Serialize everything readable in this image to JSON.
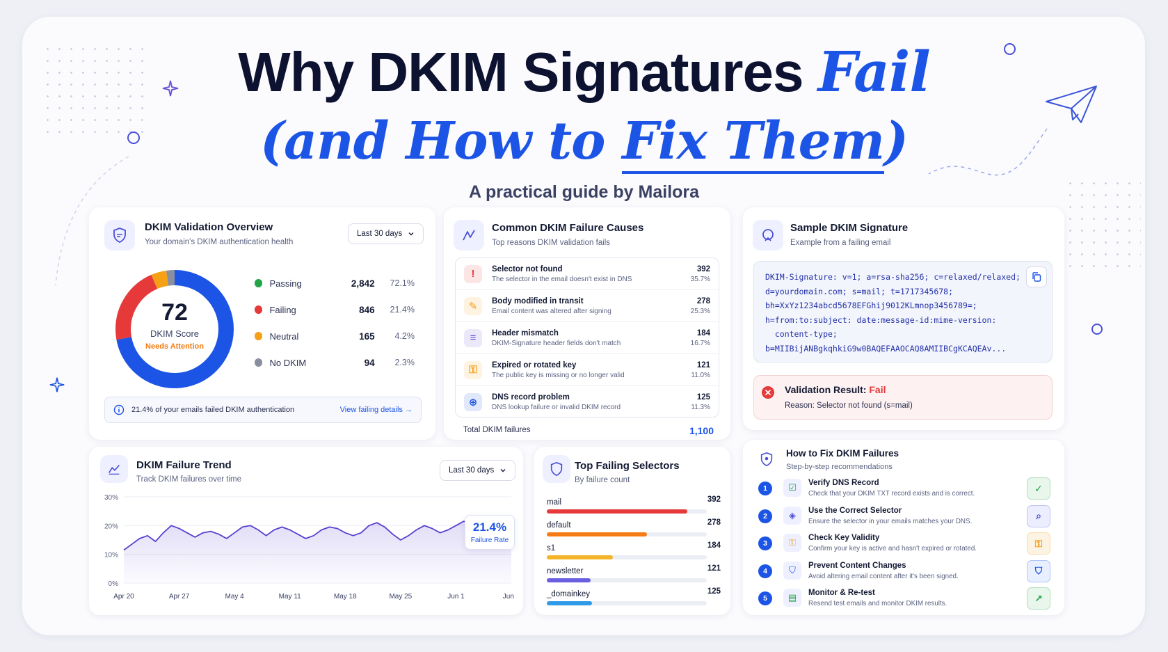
{
  "header": {
    "title_part1": "Why DKIM Signatures ",
    "title_accent": "Fail",
    "title_line2_part1": "(and How to ",
    "title_line2_underlined": "Fix Them",
    "title_line2_part2": ")",
    "subtitle": "A practical guide by Mailora"
  },
  "overview": {
    "title": "DKIM Validation Overview",
    "subtitle": "Your domain's DKIM authentication health",
    "period": "Last 30 days",
    "score": "72",
    "score_label": "DKIM Score",
    "score_status": "Needs Attention",
    "legend": [
      {
        "name": "Passing",
        "value": "2,842",
        "pct": "72.1%",
        "color": "#22a447",
        "fraction": 0.721
      },
      {
        "name": "Failing",
        "value": "846",
        "pct": "21.4%",
        "color": "#e5393a",
        "fraction": 0.214
      },
      {
        "name": "Neutral",
        "value": "165",
        "pct": "4.2%",
        "color": "#f5a015",
        "fraction": 0.042
      },
      {
        "name": "No DKIM",
        "value": "94",
        "pct": "2.3%",
        "color": "#8a8f9f",
        "fraction": 0.023
      }
    ],
    "ring_color": "#1c54e6",
    "info": "21.4% of your emails failed DKIM authentication",
    "info_link": "View failing details"
  },
  "causes": {
    "title": "Common DKIM Failure Causes",
    "subtitle": "Top reasons DKIM validation fails",
    "items": [
      {
        "title": "Selector not found",
        "desc": "The selector in the email doesn't exist in DNS",
        "value": "392",
        "pct": "35.7%",
        "icon": "alert-icon",
        "color": "#e5393a"
      },
      {
        "title": "Body modified in transit",
        "desc": "Email content was altered after signing",
        "value": "278",
        "pct": "25.3%",
        "icon": "edit-icon",
        "color": "#f5a015"
      },
      {
        "title": "Header mismatch",
        "desc": "DKIM-Signature header fields don't match",
        "value": "184",
        "pct": "16.7%",
        "icon": "list-icon",
        "color": "#6a4fd8"
      },
      {
        "title": "Expired or rotated key",
        "desc": "The public key is missing or no longer valid",
        "value": "121",
        "pct": "11.0%",
        "icon": "key-icon",
        "color": "#f5a015"
      },
      {
        "title": "DNS record problem",
        "desc": "DNS lookup failure or invalid DKIM record",
        "value": "125",
        "pct": "11.3%",
        "icon": "globe-icon",
        "color": "#1c54e6"
      }
    ],
    "total_label": "Total DKIM failures",
    "total_value": "1,100"
  },
  "signature": {
    "title": "Sample DKIM Signature",
    "subtitle": "Example from a failing email",
    "lines": [
      "DKIM-Signature: v=1; a=rsa-sha256; c=relaxed/relaxed;",
      "d=yourdomain.com; s=mail; t=1717345678;",
      "bh=XxYz1234abcd5678EFGhij9012KLmnop3456789=;",
      "h=from:to:subject: date:message-id:mime-version:",
      "  content-type;",
      "b=MIIBijANBgkqhkiG9w0BAQEFAAOCAQ8AMIIBCgKCAQEAv..."
    ],
    "result_label": "Validation Result: ",
    "result_value": "Fail",
    "reason": "Reason: Selector not found (s=mail)"
  },
  "trend": {
    "title": "DKIM Failure Trend",
    "subtitle": "Track DKIM failures over time",
    "period": "Last 30 days",
    "callout_value": "21.4%",
    "callout_label": "Failure Rate"
  },
  "chart_data": {
    "type": "area",
    "x": [
      "Apr 20",
      "Apr 21",
      "Apr 22",
      "Apr 23",
      "Apr 24",
      "Apr 25",
      "Apr 26",
      "Apr 27",
      "Apr 28",
      "Apr 29",
      "Apr 30",
      "May 1",
      "May 2",
      "May 3",
      "May 4",
      "May 5",
      "May 6",
      "May 7",
      "May 8",
      "May 9",
      "May 10",
      "May 11",
      "May 12",
      "May 13",
      "May 14",
      "May 15",
      "May 16",
      "May 17",
      "May 18",
      "May 19",
      "May 20",
      "May 21",
      "May 22",
      "May 23",
      "May 24",
      "May 25",
      "May 26",
      "May 27",
      "May 28",
      "May 29",
      "May 30",
      "May 31",
      "Jun 1",
      "Jun 2",
      "Jun 3",
      "Jun 4",
      "Jun 5",
      "Jun 6",
      "Jun 7",
      "Jun 8"
    ],
    "values": [
      11.5,
      13.5,
      15.5,
      16.5,
      14.5,
      17.5,
      20,
      19,
      17.5,
      16,
      17.5,
      18,
      17,
      15.5,
      17.5,
      19.5,
      20,
      18.5,
      16.5,
      18.5,
      19.5,
      18.5,
      17,
      15.5,
      16.5,
      18.5,
      19.5,
      19,
      17.5,
      16.5,
      17.5,
      20,
      21,
      19.5,
      17,
      15,
      16.5,
      18.5,
      20,
      19,
      17.5,
      18.5,
      20,
      21.5,
      20.5,
      19.5,
      20.5,
      21,
      21.5,
      21.4
    ],
    "x_ticks": [
      "Apr 20",
      "Apr 27",
      "May 4",
      "May 11",
      "May 18",
      "May 25",
      "Jun 1",
      "Jun 8"
    ],
    "y_ticks": [
      "30%",
      "20%",
      "10%",
      "0%"
    ],
    "ylim": [
      0,
      30
    ],
    "series_color": "#5a3fd0"
  },
  "selectors": {
    "title": "Top Failing Selectors",
    "subtitle": "By failure count",
    "items": [
      {
        "name": "mail",
        "value": "392",
        "count": 392,
        "color": "#e5393a"
      },
      {
        "name": "default",
        "value": "278",
        "count": 278,
        "color": "#f57c15"
      },
      {
        "name": "s1",
        "value": "184",
        "count": 184,
        "color": "#f5b52a"
      },
      {
        "name": "newsletter",
        "value": "121",
        "count": 121,
        "color": "#6a5fe0"
      },
      {
        "name": "_domainkey",
        "value": "125",
        "count": 125,
        "color": "#2f9ae8"
      }
    ],
    "max_count": 392
  },
  "fixes": {
    "title": "How to Fix DKIM Failures",
    "subtitle": "Step-by-step recommendations",
    "items": [
      {
        "num": "1",
        "title": "Verify DNS Record",
        "desc": "Check that your DKIM TXT record exists and is correct.",
        "icon": "dns-check-icon",
        "badge": "check-icon",
        "color": "#22a447",
        "bg": "#e8f6ec"
      },
      {
        "num": "2",
        "title": "Use the Correct Selector",
        "desc": "Ensure the selector in your emails matches your DNS.",
        "icon": "selector-icon",
        "badge": "search-icon",
        "color": "#4a4fd6",
        "bg": "#eceeff"
      },
      {
        "num": "3",
        "title": "Check Key Validity",
        "desc": "Confirm your key is active and hasn't expired or rotated.",
        "icon": "key-icon",
        "badge": "key-icon",
        "color": "#f5a015",
        "bg": "#fdf3e2"
      },
      {
        "num": "4",
        "title": "Prevent Content Changes",
        "desc": "Avoid altering email content after it's been signed.",
        "icon": "shield-icon",
        "badge": "shield-icon",
        "color": "#1c54e6",
        "bg": "#e8efff"
      },
      {
        "num": "5",
        "title": "Monitor & Re-test",
        "desc": "Resend test emails and monitor DKIM results.",
        "icon": "chart-icon",
        "badge": "trend-icon",
        "color": "#22a447",
        "bg": "#e8f6ec"
      }
    ]
  }
}
